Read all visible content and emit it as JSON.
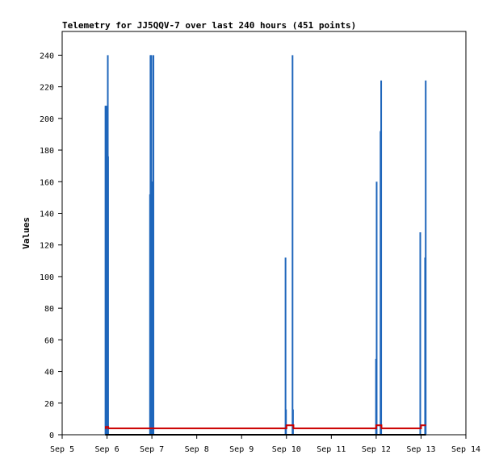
{
  "chart_data": {
    "type": "bar",
    "title": "Telemetry for JJ5QQV-7 over last 240 hours (451 points)",
    "xlabel": "",
    "ylabel": "Values",
    "xlim": [
      "2023-09-05T00:00",
      "2023-09-14T00:00"
    ],
    "ylim": [
      0,
      255
    ],
    "x_ticks": [
      {
        "date": "2023-09-05T00:00",
        "label": "Sep 5"
      },
      {
        "date": "2023-09-06T00:00",
        "label": "Sep 6"
      },
      {
        "date": "2023-09-07T00:00",
        "label": "Sep 7"
      },
      {
        "date": "2023-09-08T00:00",
        "label": "Sep 8"
      },
      {
        "date": "2023-09-09T00:00",
        "label": "Sep 9"
      },
      {
        "date": "2023-09-10T00:00",
        "label": "Sep 10"
      },
      {
        "date": "2023-09-11T00:00",
        "label": "Sep 11"
      },
      {
        "date": "2023-09-12T00:00",
        "label": "Sep 12"
      },
      {
        "date": "2023-09-13T00:00",
        "label": "Sep 13"
      },
      {
        "date": "2023-09-14T00:00",
        "label": "Sep 14"
      }
    ],
    "y_ticks": [
      0,
      20,
      40,
      60,
      80,
      100,
      120,
      140,
      160,
      180,
      200,
      220,
      240
    ],
    "grid": false,
    "legend": "none",
    "series": [
      {
        "color": "#1f66bb",
        "style": "bars",
        "points": [
          {
            "x": "2023-09-05T23:10",
            "y": 208
          },
          {
            "x": "2023-09-05T23:25",
            "y": 208
          },
          {
            "x": "2023-09-05T23:40",
            "y": 208
          },
          {
            "x": "2023-09-06T00:10",
            "y": 112
          },
          {
            "x": "2023-09-06T00:25",
            "y": 240
          },
          {
            "x": "2023-09-06T00:35",
            "y": 176
          },
          {
            "x": "2023-09-06T23:00",
            "y": 152
          },
          {
            "x": "2023-09-06T23:15",
            "y": 240
          },
          {
            "x": "2023-09-06T23:30",
            "y": 240
          },
          {
            "x": "2023-09-06T23:45",
            "y": 240
          },
          {
            "x": "2023-09-07T00:00",
            "y": 160
          },
          {
            "x": "2023-09-07T00:10",
            "y": 160
          },
          {
            "x": "2023-09-07T00:20",
            "y": 160
          },
          {
            "x": "2023-09-07T00:35",
            "y": 160
          },
          {
            "x": "2023-09-07T00:50",
            "y": 240
          },
          {
            "x": "2023-09-09T23:30",
            "y": 112
          },
          {
            "x": "2023-09-09T23:45",
            "y": 16
          },
          {
            "x": "2023-09-10T03:15",
            "y": 240
          },
          {
            "x": "2023-09-10T03:30",
            "y": 16
          },
          {
            "x": "2023-09-11T23:55",
            "y": 48
          },
          {
            "x": "2023-09-12T00:15",
            "y": 160
          },
          {
            "x": "2023-09-12T02:20",
            "y": 192
          },
          {
            "x": "2023-09-12T02:40",
            "y": 224
          },
          {
            "x": "2023-09-12T23:35",
            "y": 128
          },
          {
            "x": "2023-09-13T02:10",
            "y": 112
          },
          {
            "x": "2023-09-13T02:30",
            "y": 224
          }
        ]
      },
      {
        "color": "#cc0000",
        "style": "line",
        "points": [
          {
            "x": "2023-09-05T23:00",
            "y": 4
          },
          {
            "x": "2023-09-05T23:20",
            "y": 5
          },
          {
            "x": "2023-09-06T00:40",
            "y": 4
          },
          {
            "x": "2023-09-09T23:50",
            "y": 4
          },
          {
            "x": "2023-09-10T00:00",
            "y": 6
          },
          {
            "x": "2023-09-10T03:45",
            "y": 4
          },
          {
            "x": "2023-09-11T23:45",
            "y": 4
          },
          {
            "x": "2023-09-12T00:00",
            "y": 6
          },
          {
            "x": "2023-09-12T02:50",
            "y": 4
          },
          {
            "x": "2023-09-12T23:40",
            "y": 4
          },
          {
            "x": "2023-09-13T00:00",
            "y": 6
          },
          {
            "x": "2023-09-13T02:40",
            "y": 6
          }
        ]
      },
      {
        "color": "#000000",
        "style": "line",
        "points": [
          {
            "x": "2023-09-05T23:00",
            "y": 0
          },
          {
            "x": "2023-09-13T02:40",
            "y": 0
          }
        ]
      }
    ]
  }
}
